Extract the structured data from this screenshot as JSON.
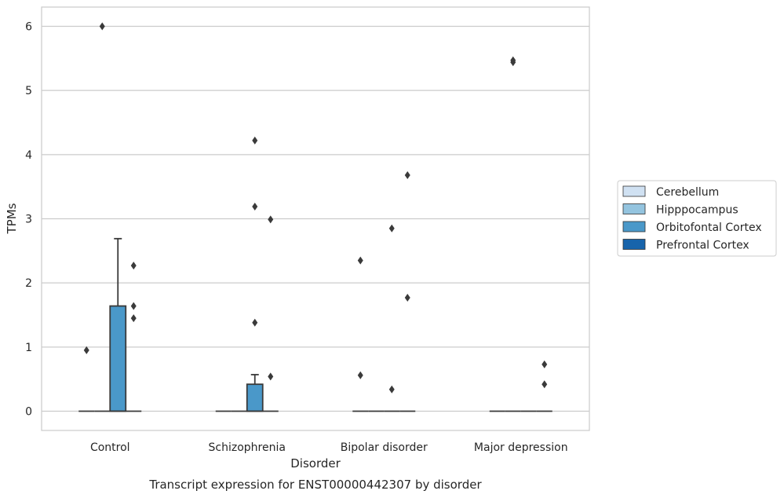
{
  "chart_data": {
    "type": "box",
    "xlabel": "Disorder",
    "ylabel": "TPMs",
    "caption": "Transcript expression for ENST00000442307 by disorder",
    "categories": [
      "Control",
      "Schizophrenia",
      "Bipolar disorder",
      "Major depression"
    ],
    "ylim": [
      -0.3,
      6.3
    ],
    "yticks": [
      "0",
      "1",
      "2",
      "3",
      "4",
      "5",
      "6"
    ],
    "grid": "horizontal",
    "legend_position": "right",
    "series": [
      {
        "name": "Cerebellum",
        "color": "#d0e1f2",
        "boxes": [
          {
            "q1": 0,
            "median": 0,
            "q3": 0,
            "whisker_low": 0,
            "whisker_high": 0,
            "outliers": [
              0.95
            ]
          },
          {
            "q1": 0,
            "median": 0,
            "q3": 0,
            "whisker_low": 0,
            "whisker_high": 0,
            "outliers": []
          },
          {
            "q1": 0,
            "median": 0,
            "q3": 0,
            "whisker_low": 0,
            "whisker_high": 0,
            "outliers": [
              2.35,
              0.56
            ]
          },
          {
            "q1": 0,
            "median": 0,
            "q3": 0,
            "whisker_low": 0,
            "whisker_high": 0,
            "outliers": []
          }
        ]
      },
      {
        "name": "Hipppocampus",
        "color": "#94c4df",
        "boxes": [
          {
            "q1": 0,
            "median": 0,
            "q3": 0,
            "whisker_low": 0,
            "whisker_high": 0,
            "outliers": [
              6.0
            ]
          },
          {
            "q1": 0,
            "median": 0,
            "q3": 0,
            "whisker_low": 0,
            "whisker_high": 0,
            "outliers": []
          },
          {
            "q1": 0,
            "median": 0,
            "q3": 0,
            "whisker_low": 0,
            "whisker_high": 0,
            "outliers": []
          },
          {
            "q1": 0,
            "median": 0,
            "q3": 0,
            "whisker_low": 0,
            "whisker_high": 0,
            "outliers": [
              5.47,
              5.44
            ]
          }
        ]
      },
      {
        "name": "Orbitofontal Cortex",
        "color": "#4a98c9",
        "boxes": [
          {
            "q1": 0,
            "median": 0,
            "q3": 1.64,
            "whisker_low": 0,
            "whisker_high": 2.69,
            "outliers": []
          },
          {
            "q1": 0,
            "median": 0,
            "q3": 0.42,
            "whisker_low": 0,
            "whisker_high": 0.57,
            "outliers": [
              4.22,
              3.19,
              1.38
            ]
          },
          {
            "q1": 0,
            "median": 0,
            "q3": 0,
            "whisker_low": 0,
            "whisker_high": 0,
            "outliers": [
              2.85,
              0.34
            ]
          },
          {
            "q1": 0,
            "median": 0,
            "q3": 0,
            "whisker_low": 0,
            "whisker_high": 0,
            "outliers": []
          }
        ]
      },
      {
        "name": "Prefrontal Cortex",
        "color": "#1764ab",
        "boxes": [
          {
            "q1": 0,
            "median": 0,
            "q3": 0,
            "whisker_low": 0,
            "whisker_high": 0,
            "outliers": [
              2.27,
              1.64,
              1.45
            ]
          },
          {
            "q1": 0,
            "median": 0,
            "q3": 0,
            "whisker_low": 0,
            "whisker_high": 0,
            "outliers": [
              2.99,
              0.54
            ]
          },
          {
            "q1": 0,
            "median": 0,
            "q3": 0,
            "whisker_low": 0,
            "whisker_high": 0,
            "outliers": [
              3.68,
              1.77
            ]
          },
          {
            "q1": 0,
            "median": 0,
            "q3": 0,
            "whisker_low": 0,
            "whisker_high": 0,
            "outliers": [
              0.73,
              0.42
            ]
          }
        ]
      }
    ]
  }
}
